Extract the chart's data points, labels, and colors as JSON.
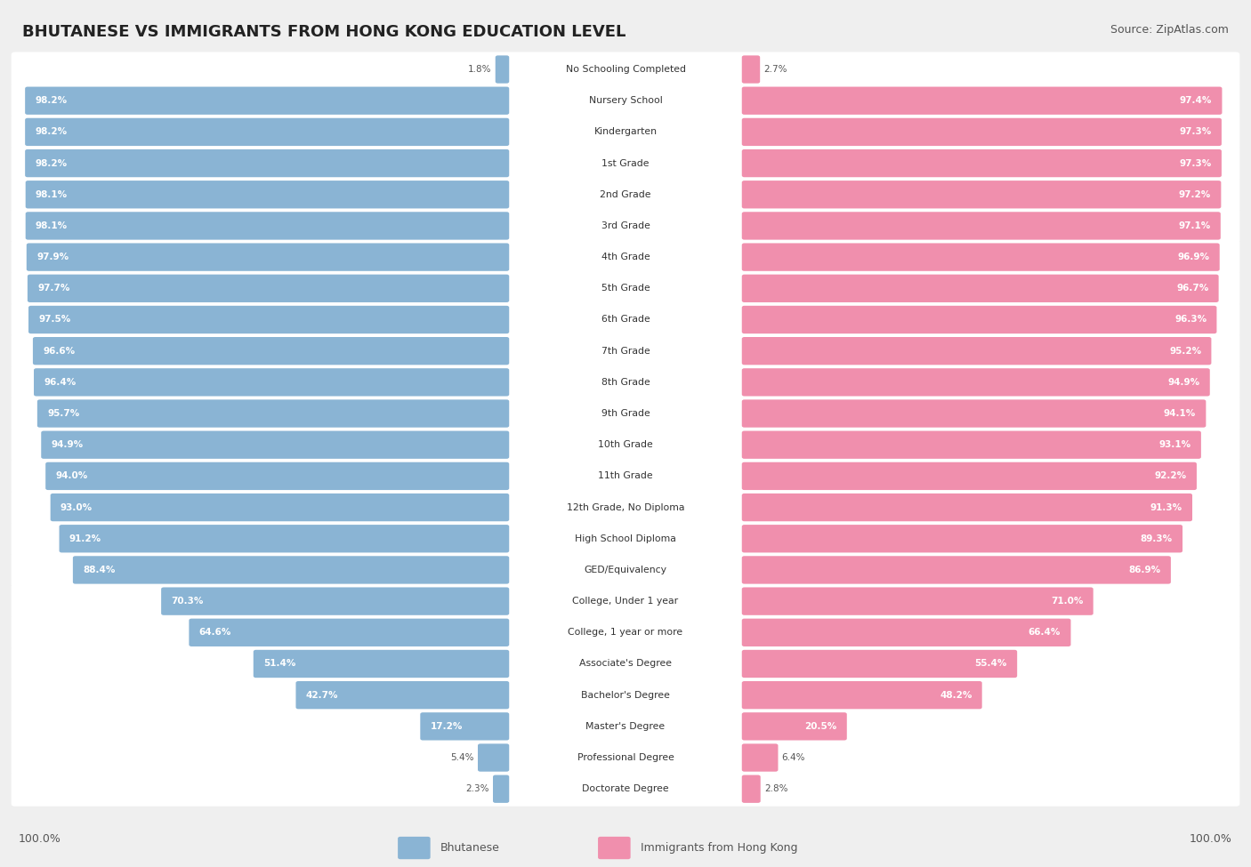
{
  "title": "BHUTANESE VS IMMIGRANTS FROM HONG KONG EDUCATION LEVEL",
  "source": "Source: ZipAtlas.com",
  "categories": [
    "No Schooling Completed",
    "Nursery School",
    "Kindergarten",
    "1st Grade",
    "2nd Grade",
    "3rd Grade",
    "4th Grade",
    "5th Grade",
    "6th Grade",
    "7th Grade",
    "8th Grade",
    "9th Grade",
    "10th Grade",
    "11th Grade",
    "12th Grade, No Diploma",
    "High School Diploma",
    "GED/Equivalency",
    "College, Under 1 year",
    "College, 1 year or more",
    "Associate's Degree",
    "Bachelor's Degree",
    "Master's Degree",
    "Professional Degree",
    "Doctorate Degree"
  ],
  "bhutanese": [
    1.8,
    98.2,
    98.2,
    98.2,
    98.1,
    98.1,
    97.9,
    97.7,
    97.5,
    96.6,
    96.4,
    95.7,
    94.9,
    94.0,
    93.0,
    91.2,
    88.4,
    70.3,
    64.6,
    51.4,
    42.7,
    17.2,
    5.4,
    2.3
  ],
  "hongkong": [
    2.7,
    97.4,
    97.3,
    97.3,
    97.2,
    97.1,
    96.9,
    96.7,
    96.3,
    95.2,
    94.9,
    94.1,
    93.1,
    92.2,
    91.3,
    89.3,
    86.9,
    71.0,
    66.4,
    55.4,
    48.2,
    20.5,
    6.4,
    2.8
  ],
  "blue_color": "#8ab4d4",
  "pink_color": "#f08fad",
  "bg_color": "#efefef",
  "bar_bg_color": "#ffffff",
  "legend_blue": "Bhutanese",
  "legend_pink": "Immigrants from Hong Kong",
  "title_fontsize": 13,
  "source_fontsize": 9,
  "label_fontsize": 7.8,
  "value_fontsize": 7.5
}
